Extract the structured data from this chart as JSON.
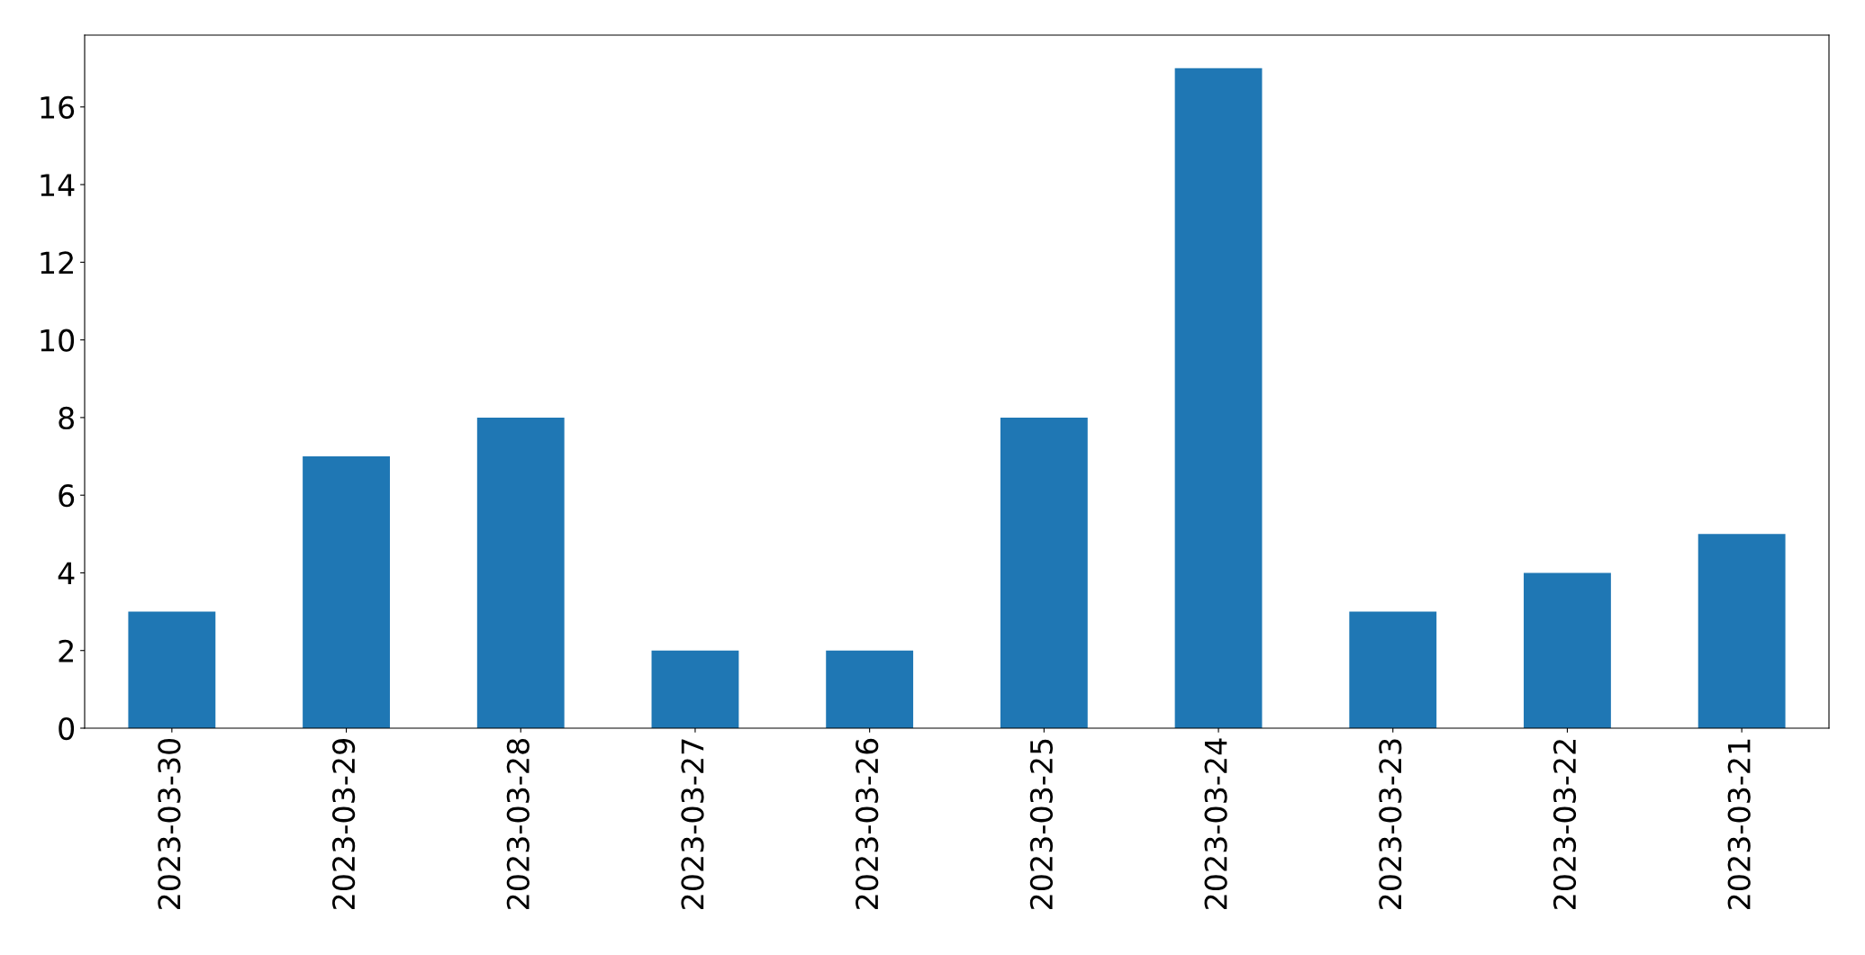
{
  "chart_data": {
    "type": "bar",
    "categories": [
      "2023-03-30",
      "2023-03-29",
      "2023-03-28",
      "2023-03-27",
      "2023-03-26",
      "2023-03-25",
      "2023-03-24",
      "2023-03-23",
      "2023-03-22",
      "2023-03-21"
    ],
    "values": [
      3,
      7,
      8,
      2,
      2,
      8,
      17,
      3,
      4,
      5
    ],
    "color": "#1f77b4",
    "ylim": [
      0,
      17.85
    ],
    "yticks": [
      0,
      2,
      4,
      6,
      8,
      10,
      12,
      14,
      16
    ],
    "grid": false,
    "legend": false
  }
}
